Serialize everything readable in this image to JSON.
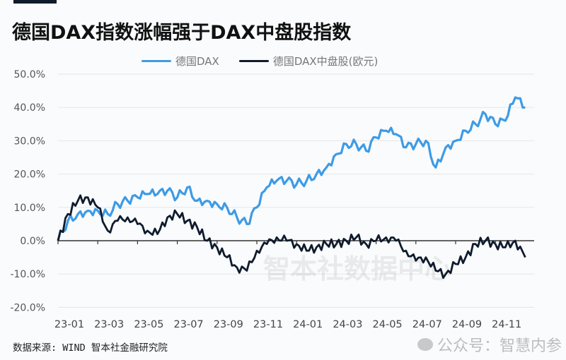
{
  "header": {
    "title": "德国DAX指数涨幅强于DAX中盘股指数"
  },
  "legend": [
    {
      "label": "德国DAX",
      "color": "#3d9be6"
    },
    {
      "label": "德国DAX中盘股(欧元)",
      "color": "#0f1b2d"
    }
  ],
  "watermark": "智本社数据中心",
  "footer": {
    "source": "数据来源: WIND 智本社金融研究院",
    "account_watermark": "公众号：智慧内参"
  },
  "chart_data": {
    "type": "line",
    "title": "德国DAX指数涨幅强于DAX中盘股指数",
    "xlabel": "",
    "ylabel": "",
    "ylim": [
      -20,
      50
    ],
    "yticks": [
      "50.0%",
      "40.0%",
      "30.0%",
      "20.0%",
      "10.0%",
      "0.0%",
      "-10.0%",
      "-20.0%"
    ],
    "xticks": [
      "23-01",
      "23-03",
      "23-05",
      "23-07",
      "23-09",
      "23-11",
      "24-01",
      "24-03",
      "24-05",
      "24-07",
      "24-09",
      "24-11"
    ],
    "grid": "horizontal",
    "legend_position": "top",
    "x": [
      "23-01a",
      "23-01b",
      "23-02a",
      "23-02b",
      "23-03a",
      "23-03b",
      "23-04a",
      "23-04b",
      "23-05a",
      "23-05b",
      "23-06a",
      "23-06b",
      "23-07a",
      "23-07b",
      "23-08a",
      "23-08b",
      "23-09a",
      "23-09b",
      "23-10a",
      "23-10b",
      "23-11a",
      "23-11b",
      "23-12a",
      "23-12b",
      "24-01a",
      "24-01b",
      "24-02a",
      "24-02b",
      "24-03a",
      "24-03b",
      "24-04a",
      "24-04b",
      "24-05a",
      "24-05b",
      "24-06a",
      "24-06b",
      "24-07a",
      "24-07b",
      "24-08a",
      "24-08b",
      "24-09a",
      "24-09b",
      "24-10a",
      "24-10b",
      "24-11a",
      "24-11b",
      "24-12a",
      "24-12b"
    ],
    "series": [
      {
        "name": "德国DAX",
        "color": "#3d9be6",
        "values": [
          0,
          6,
          8,
          9,
          9,
          8,
          11,
          12,
          13,
          14,
          14,
          15,
          13,
          16,
          12,
          12,
          11,
          10,
          7,
          5,
          10,
          16,
          18,
          18,
          17,
          18,
          20,
          22,
          26,
          29,
          29,
          27,
          31,
          33,
          32,
          28,
          29,
          30,
          22,
          28,
          30,
          33,
          35,
          38,
          35,
          36,
          43,
          40
        ]
      },
      {
        "name": "德国DAX中盘股(欧元)",
        "color": "#0f1b2d",
        "values": [
          0,
          8,
          12,
          13,
          10,
          3,
          6,
          7,
          5,
          3,
          2,
          7,
          8,
          6,
          4,
          0,
          -2,
          -5,
          -8,
          -9,
          -3,
          -1,
          1,
          0,
          -1,
          -3,
          -2,
          -1,
          -1,
          0,
          1,
          -1,
          0,
          1,
          0,
          -3,
          -6,
          -5,
          -9,
          -10,
          -7,
          -5,
          -1,
          0,
          -1,
          -2,
          0,
          -5
        ]
      }
    ],
    "units": "%"
  }
}
